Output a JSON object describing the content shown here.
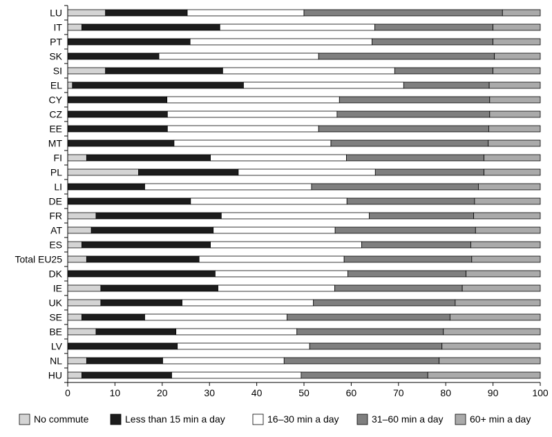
{
  "chart_data": {
    "type": "bar",
    "orientation": "horizontal",
    "stacked": true,
    "categories": [
      "LU",
      "IT",
      "PT",
      "SK",
      "SI",
      "EL",
      "CY",
      "CZ",
      "EE",
      "MT",
      "FI",
      "PL",
      "LI",
      "DE",
      "FR",
      "AT",
      "ES",
      "Total EU25",
      "DK",
      "IE",
      "UK",
      "SE",
      "BE",
      "LV",
      "NL",
      "HU"
    ],
    "series": [
      {
        "name": "No commute",
        "color": "#d4d4d4",
        "values": [
          8,
          3,
          0,
          0,
          8,
          1,
          0,
          0,
          0,
          0,
          4,
          15,
          0,
          0,
          6,
          5,
          3,
          4,
          0,
          7,
          7,
          3,
          6,
          0,
          4,
          3
        ]
      },
      {
        "name": "Less than 15 min a day",
        "color": "#1c1c1c",
        "values": [
          17.3,
          29.2,
          25.9,
          19.3,
          24.8,
          36.2,
          21,
          21.1,
          21.1,
          22.5,
          26.2,
          21.1,
          16.3,
          26,
          26.5,
          25.8,
          27.2,
          23.8,
          31.2,
          24.8,
          17.2,
          13.3,
          16.9,
          23.2,
          16.1,
          19
        ]
      },
      {
        "name": "16–30 min a day",
        "color": "#ffffff",
        "values": [
          24.7,
          32.8,
          38.5,
          33.8,
          36.4,
          33.9,
          36.5,
          35.9,
          32,
          33.2,
          28.8,
          29,
          35.3,
          33.1,
          31.3,
          25.8,
          32,
          30.7,
          28.1,
          24.7,
          27.8,
          30.1,
          25.6,
          28,
          25.7,
          27.4
        ]
      },
      {
        "name": "31–60 min a day",
        "color": "#7f7f7f",
        "values": [
          42,
          25,
          25.6,
          37.2,
          20.8,
          18.1,
          31.8,
          32.3,
          36,
          33.3,
          29.1,
          23,
          35.3,
          27,
          22.1,
          29.7,
          23.1,
          27,
          25,
          27,
          30,
          34.5,
          31,
          28,
          32.8,
          26.8
        ]
      },
      {
        "name": "60+ min a day",
        "color": "#aaaaaa",
        "values": [
          8,
          10,
          10,
          9.7,
          10,
          10.8,
          10.7,
          10.7,
          10.9,
          11,
          11.9,
          11.9,
          13.1,
          13.9,
          14.1,
          13.7,
          14.7,
          14.5,
          15.7,
          16.5,
          18,
          19.1,
          20.5,
          20.8,
          21.4,
          23.8
        ]
      }
    ],
    "xlim": [
      0,
      100
    ],
    "xticks": [
      0,
      10,
      20,
      30,
      40,
      50,
      60,
      70,
      80,
      90,
      100
    ],
    "grid": false,
    "legend_position": "bottom",
    "title": "",
    "xlabel": "",
    "ylabel": ""
  }
}
